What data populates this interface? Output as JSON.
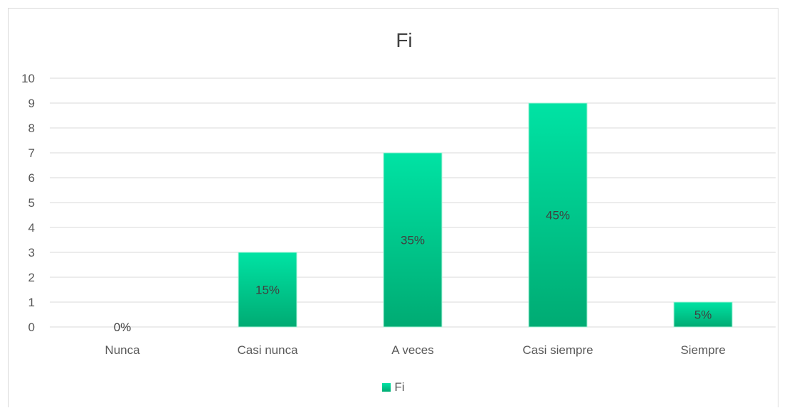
{
  "chart_data": {
    "type": "bar",
    "title": "Fi",
    "categories": [
      "Nunca",
      "Casi nunca",
      "A veces",
      "Casi siempre",
      "Siempre"
    ],
    "series": [
      {
        "name": "Fi",
        "values": [
          0,
          3,
          7,
          9,
          1
        ],
        "labels": [
          "0%",
          "15%",
          "35%",
          "45%",
          "5%"
        ]
      }
    ],
    "ylim": [
      0,
      10
    ],
    "yticks": [
      "0",
      "1",
      "2",
      "3",
      "4",
      "5",
      "6",
      "7",
      "8",
      "9",
      "10"
    ],
    "grid": true,
    "legend_position": "bottom",
    "colors": {
      "bar_top": "#00e3a4",
      "bar_bottom": "#00ab73",
      "bar_edge": "#a3f0d6",
      "grid": "#d9d9d9",
      "text": "#595959",
      "title": "#404040"
    }
  }
}
